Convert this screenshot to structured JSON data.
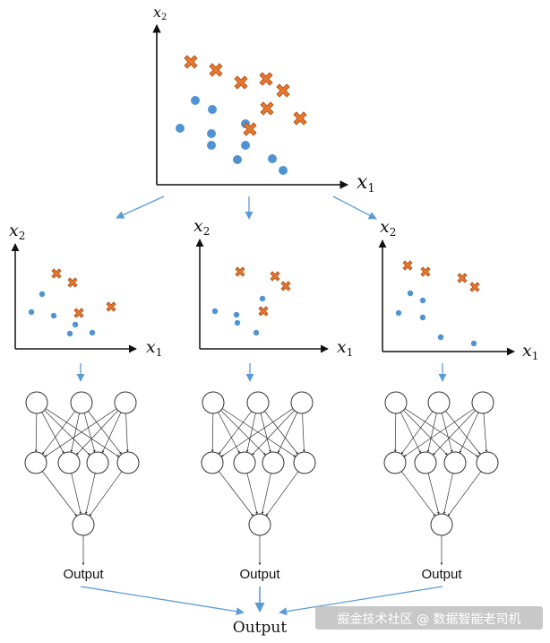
{
  "colors": {
    "circle": "#4f93d3",
    "cross": "#e8782f",
    "cross_stroke": "#a9480f",
    "arrow": "#5b9bd5",
    "axis": "#111111",
    "node_stroke": "#333333",
    "edge": "#333333",
    "watermark_bg": "#b5b5b5"
  },
  "top_plot": {
    "x_label": "x",
    "x_sub": "1",
    "y_label": "x",
    "y_sub": "2",
    "circles": [
      [
        201,
        143
      ],
      [
        218,
        112
      ],
      [
        237,
        122
      ],
      [
        236,
        149
      ],
      [
        236,
        162
      ],
      [
        274,
        138
      ],
      [
        274,
        162
      ],
      [
        265,
        178
      ],
      [
        304,
        177
      ],
      [
        316,
        190
      ]
    ],
    "crosses": [
      [
        213,
        69
      ],
      [
        241,
        78
      ],
      [
        269,
        92
      ],
      [
        297,
        88
      ],
      [
        316,
        101
      ],
      [
        298,
        121
      ],
      [
        279,
        144
      ],
      [
        335,
        132
      ]
    ]
  },
  "sub_plots": [
    {
      "x_label": "x",
      "x_sub": "1",
      "y_label": "x",
      "y_sub": "2",
      "circles": [
        [
          35,
          348
        ],
        [
          47,
          328
        ],
        [
          60,
          352
        ],
        [
          78,
          372
        ],
        [
          84,
          362
        ],
        [
          103,
          371
        ]
      ],
      "crosses": [
        [
          63,
          305
        ],
        [
          81,
          315
        ],
        [
          88,
          349
        ],
        [
          124,
          342
        ]
      ]
    },
    {
      "x_label": "x",
      "x_sub": "1",
      "y_label": "x",
      "y_sub": "2",
      "circles": [
        [
          240,
          347
        ],
        [
          264,
          351
        ],
        [
          265,
          360
        ],
        [
          286,
          371
        ],
        [
          293,
          333
        ]
      ],
      "crosses": [
        [
          268,
          303
        ],
        [
          307,
          308
        ],
        [
          319,
          319
        ],
        [
          294,
          347
        ]
      ]
    },
    {
      "x_label": "x",
      "x_sub": "1",
      "y_label": "x",
      "y_sub": "2",
      "circles": [
        [
          445,
          349
        ],
        [
          458,
          327
        ],
        [
          472,
          335
        ],
        [
          472,
          354
        ],
        [
          492,
          376
        ],
        [
          529,
          383
        ]
      ],
      "crosses": [
        [
          455,
          296
        ],
        [
          475,
          303
        ],
        [
          516,
          310
        ],
        [
          530,
          320
        ]
      ]
    }
  ],
  "networks": [
    {
      "output_label": "Output"
    },
    {
      "output_label": "Output"
    },
    {
      "output_label": "Output"
    }
  ],
  "final_output": "Output",
  "watermark": "掘金技术社区 @ 数据智能老司机"
}
